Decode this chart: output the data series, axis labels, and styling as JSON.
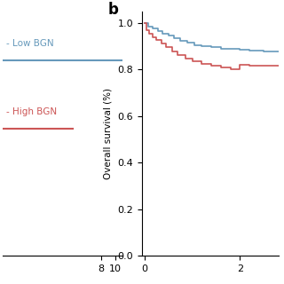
{
  "blue_color": "#6699bb",
  "red_color": "#cc5555",
  "panel_b_label": "b",
  "ylabel": "Overall survival (%)",
  "ylim": [
    0.0,
    1.05
  ],
  "yticks": [
    0.0,
    0.2,
    0.4,
    0.6,
    0.8,
    1.0
  ],
  "xlim_left": [
    -6,
    11
  ],
  "xlim_right": [
    -0.05,
    2.8
  ],
  "xticks_left": [
    8,
    10
  ],
  "xticks_right": [
    0,
    2
  ],
  "legend_low": "- Low BGN",
  "legend_high": "- High BGN",
  "low_bgn_x": [
    0,
    0.08,
    0.08,
    0.18,
    0.18,
    0.28,
    0.28,
    0.38,
    0.38,
    0.5,
    0.5,
    0.62,
    0.62,
    0.75,
    0.75,
    0.9,
    0.9,
    1.05,
    1.05,
    1.2,
    1.2,
    1.4,
    1.4,
    1.6,
    1.6,
    1.8,
    1.8,
    2.0,
    2.0,
    2.2,
    2.2,
    2.5,
    2.5,
    2.8
  ],
  "low_bgn_y": [
    1.0,
    1.0,
    0.985,
    0.985,
    0.975,
    0.975,
    0.965,
    0.965,
    0.955,
    0.955,
    0.945,
    0.945,
    0.935,
    0.935,
    0.925,
    0.925,
    0.915,
    0.915,
    0.905,
    0.905,
    0.9,
    0.9,
    0.895,
    0.895,
    0.89,
    0.89,
    0.888,
    0.888,
    0.885,
    0.885,
    0.882,
    0.882,
    0.879,
    0.879
  ],
  "high_bgn_x": [
    0,
    0.05,
    0.05,
    0.1,
    0.1,
    0.18,
    0.18,
    0.25,
    0.25,
    0.35,
    0.35,
    0.45,
    0.45,
    0.58,
    0.58,
    0.7,
    0.7,
    0.85,
    0.85,
    1.0,
    1.0,
    1.2,
    1.2,
    1.4,
    1.4,
    1.6,
    1.6,
    1.8,
    1.8,
    2.0,
    2.0,
    2.2,
    2.2,
    2.5,
    2.5,
    2.8
  ],
  "high_bgn_y": [
    1.0,
    1.0,
    0.97,
    0.97,
    0.955,
    0.955,
    0.94,
    0.94,
    0.928,
    0.928,
    0.912,
    0.912,
    0.895,
    0.895,
    0.878,
    0.878,
    0.862,
    0.862,
    0.848,
    0.848,
    0.835,
    0.835,
    0.825,
    0.825,
    0.816,
    0.816,
    0.808,
    0.808,
    0.802,
    0.802,
    0.82,
    0.82,
    0.818,
    0.818,
    0.815,
    0.815
  ],
  "background_color": "#ffffff"
}
